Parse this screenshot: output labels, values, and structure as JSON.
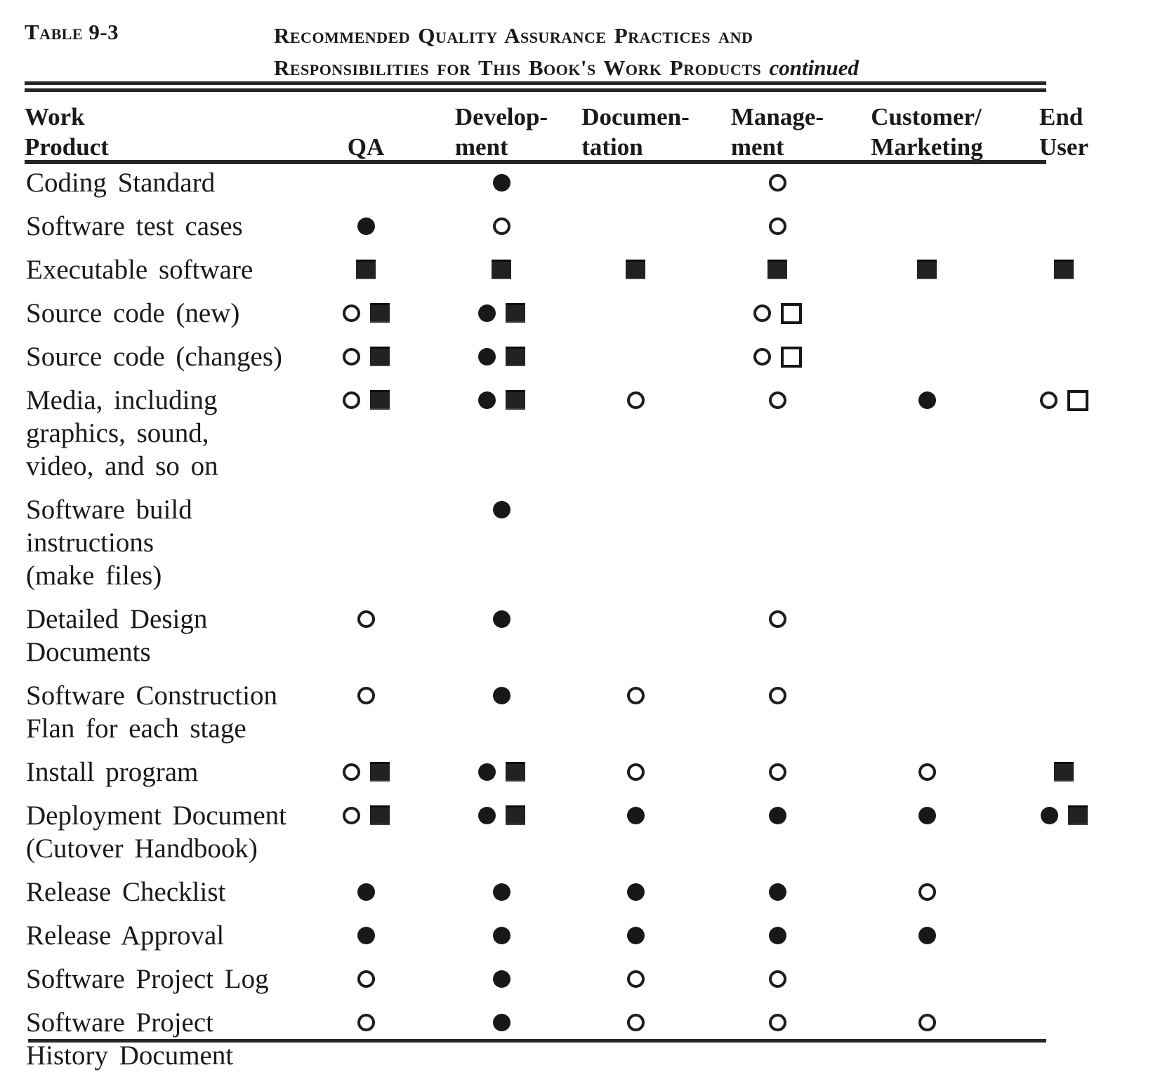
{
  "colors": {
    "paper": "#ffffff",
    "ink": "#1a1a1a"
  },
  "caption": {
    "label": "Table 9-3",
    "title_line1": "Recommended Quality Assurance Practices and",
    "title_line2": "Responsibilities for This Book's Work Products",
    "continued": "continued"
  },
  "symbols": {
    "filled-circle": "●",
    "open-circle": "○",
    "filled-square": "■",
    "open-square": "□"
  },
  "table": {
    "columns": [
      {
        "id": "work_product",
        "line1": "Work",
        "line2": "Product"
      },
      {
        "id": "qa",
        "line1": "",
        "line2": "QA"
      },
      {
        "id": "development",
        "line1": "Develop-",
        "line2": "ment"
      },
      {
        "id": "documentation",
        "line1": "Documen-",
        "line2": "tation"
      },
      {
        "id": "management",
        "line1": "Manage-",
        "line2": "ment"
      },
      {
        "id": "customer_marketing",
        "line1": "Customer/",
        "line2": "Marketing"
      },
      {
        "id": "end_user",
        "line1": "End",
        "line2": "User"
      }
    ],
    "rows": [
      {
        "label_lines": [
          "Coding Standard"
        ],
        "cells": [
          [],
          [
            "filled-circle"
          ],
          [],
          [
            "open-circle"
          ],
          [],
          []
        ]
      },
      {
        "label_lines": [
          "Software test cases"
        ],
        "cells": [
          [
            "filled-circle"
          ],
          [
            "open-circle"
          ],
          [],
          [
            "open-circle"
          ],
          [],
          []
        ]
      },
      {
        "label_lines": [
          "Executable software"
        ],
        "cells": [
          [
            "filled-square"
          ],
          [
            "filled-square"
          ],
          [
            "filled-square"
          ],
          [
            "filled-square"
          ],
          [
            "filled-square"
          ],
          [
            "filled-square"
          ]
        ]
      },
      {
        "label_lines": [
          "Source code (new)"
        ],
        "cells": [
          [
            "open-circle",
            "filled-square"
          ],
          [
            "filled-circle",
            "filled-square"
          ],
          [],
          [
            "open-circle",
            "open-square"
          ],
          [],
          []
        ]
      },
      {
        "label_lines": [
          "Source code (changes)"
        ],
        "cells": [
          [
            "open-circle",
            "filled-square"
          ],
          [
            "filled-circle",
            "filled-square"
          ],
          [],
          [
            "open-circle",
            "open-square"
          ],
          [],
          []
        ]
      },
      {
        "label_lines": [
          "Media, including",
          "graphics, sound,",
          "video, and so on"
        ],
        "cells": [
          [
            "open-circle",
            "filled-square"
          ],
          [
            "filled-circle",
            "filled-square"
          ],
          [
            "open-circle"
          ],
          [
            "open-circle"
          ],
          [
            "filled-circle"
          ],
          [
            "open-circle",
            "open-square"
          ]
        ]
      },
      {
        "label_lines": [
          "Software  build",
          "instructions",
          "(make files)"
        ],
        "cells": [
          [],
          [
            "filled-circle"
          ],
          [],
          [],
          [],
          []
        ]
      },
      {
        "label_lines": [
          "Detailed Design",
          "Documents"
        ],
        "cells": [
          [
            "open-circle"
          ],
          [
            "filled-circle"
          ],
          [],
          [
            "open-circle"
          ],
          [],
          []
        ]
      },
      {
        "label_lines": [
          "Software  Construction",
          "Flan for each stage"
        ],
        "cells": [
          [
            "open-circle"
          ],
          [
            "filled-circle"
          ],
          [
            "open-circle"
          ],
          [
            "open-circle"
          ],
          [],
          []
        ]
      },
      {
        "label_lines": [
          "Install program"
        ],
        "cells": [
          [
            "open-circle",
            "filled-square"
          ],
          [
            "filled-circle",
            "filled-square"
          ],
          [
            "open-circle"
          ],
          [
            "open-circle"
          ],
          [
            "open-circle"
          ],
          [
            "filled-square"
          ]
        ]
      },
      {
        "label_lines": [
          "Deployment Document",
          "(Cutover  Handbook)"
        ],
        "cells": [
          [
            "open-circle",
            "filled-square"
          ],
          [
            "filled-circle",
            "filled-square"
          ],
          [
            "filled-circle"
          ],
          [
            "filled-circle"
          ],
          [
            "filled-circle"
          ],
          [
            "filled-circle",
            "filled-square"
          ]
        ]
      },
      {
        "label_lines": [
          "Release  Checklist"
        ],
        "cells": [
          [
            "filled-circle"
          ],
          [
            "filled-circle"
          ],
          [
            "filled-circle"
          ],
          [
            "filled-circle"
          ],
          [
            "open-circle"
          ],
          []
        ]
      },
      {
        "label_lines": [
          "Release  Approval"
        ],
        "cells": [
          [
            "filled-circle"
          ],
          [
            "filled-circle"
          ],
          [
            "filled-circle"
          ],
          [
            "filled-circle"
          ],
          [
            "filled-circle"
          ],
          []
        ]
      },
      {
        "label_lines": [
          "Software Project Log"
        ],
        "cells": [
          [
            "open-circle"
          ],
          [
            "filled-circle"
          ],
          [
            "open-circle"
          ],
          [
            "open-circle"
          ],
          [],
          []
        ]
      },
      {
        "label_lines": [
          "Software Project",
          "History Document"
        ],
        "cells": [
          [
            "open-circle"
          ],
          [
            "filled-circle"
          ],
          [
            "open-circle"
          ],
          [
            "open-circle"
          ],
          [
            "open-circle"
          ],
          []
        ]
      }
    ]
  }
}
